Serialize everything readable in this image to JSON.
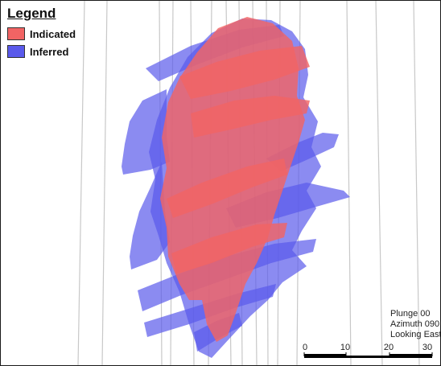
{
  "legend": {
    "title": "Legend",
    "items": [
      {
        "label": "Indicated",
        "color": "#f26464"
      },
      {
        "label": "Inferred",
        "color": "#5a5aeb"
      }
    ]
  },
  "view_info": {
    "plunge": "Plunge 00",
    "azimuth": "Azimuth 090",
    "direction": "Looking East"
  },
  "scale_bar": {
    "labels": [
      "0",
      "10",
      "20",
      "30"
    ]
  },
  "colors": {
    "indicated": "#f26464",
    "inferred": "#5a5aeb",
    "drillhole": "#c8c8c8"
  }
}
